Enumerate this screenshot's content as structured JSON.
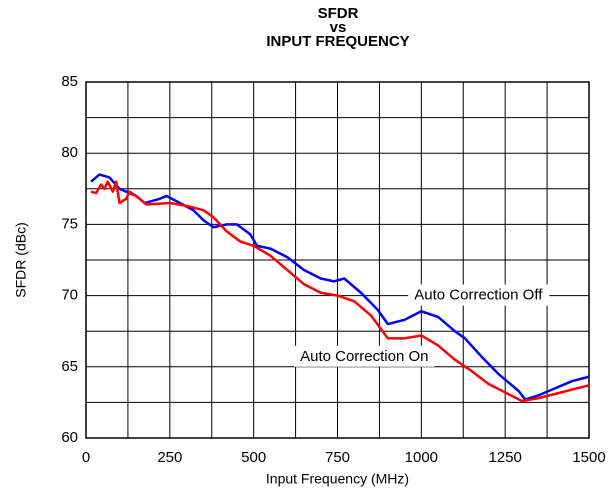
{
  "chart_data": {
    "type": "line",
    "title": [
      "SFDR",
      "vs",
      "INPUT FREQUENCY"
    ],
    "x_label": "Input Frequency (MHz)",
    "y_label": "SFDR (dBc)",
    "xlim": [
      0,
      1500
    ],
    "xticks": [
      0,
      250,
      500,
      750,
      1000,
      1250,
      1500
    ],
    "x_minor_grid": [
      125,
      375,
      625,
      875,
      1125,
      1375
    ],
    "ylim": [
      60,
      85
    ],
    "yticks": [
      60,
      65,
      70,
      75,
      80,
      85
    ],
    "y_minor_grid": [
      62.5,
      67.5,
      72.5,
      77.5,
      82.5
    ],
    "grid": true,
    "series": [
      {
        "color": "#0000ff",
        "x": [
          15,
          40,
          70,
          100,
          150,
          175,
          220,
          240,
          280,
          320,
          350,
          380,
          420,
          450,
          490,
          510,
          550,
          600,
          650,
          700,
          740,
          770,
          820,
          870,
          900,
          950,
          1000,
          1050,
          1100,
          1130,
          1180,
          1230,
          1290,
          1310,
          1350,
          1400,
          1450,
          1500
        ],
        "values": [
          78.0,
          78.5,
          78.3,
          77.5,
          77.0,
          76.5,
          76.8,
          77.0,
          76.5,
          76.0,
          75.3,
          74.8,
          75.0,
          75.0,
          74.3,
          73.5,
          73.3,
          72.7,
          71.8,
          71.2,
          71.0,
          71.2,
          70.2,
          69.0,
          68.0,
          68.3,
          68.9,
          68.5,
          67.5,
          67.0,
          65.7,
          64.5,
          63.3,
          62.7,
          63.0,
          63.5,
          64.0,
          64.3
        ]
      },
      {
        "color": "#ff0000",
        "x": [
          15,
          30,
          45,
          55,
          65,
          80,
          90,
          100,
          120,
          130,
          160,
          180,
          250,
          300,
          350,
          380,
          420,
          460,
          500,
          550,
          600,
          650,
          700,
          750,
          800,
          850,
          900,
          950,
          1000,
          1050,
          1100,
          1150,
          1200,
          1250,
          1300,
          1350,
          1400,
          1450,
          1500
        ],
        "values": [
          77.3,
          77.2,
          77.8,
          77.5,
          78.0,
          77.3,
          78.0,
          76.5,
          76.8,
          77.3,
          76.8,
          76.4,
          76.5,
          76.3,
          76.0,
          75.5,
          74.5,
          73.8,
          73.5,
          72.8,
          71.8,
          70.8,
          70.2,
          70.0,
          69.6,
          68.6,
          67.0,
          67.0,
          67.2,
          66.5,
          65.5,
          64.7,
          63.8,
          63.2,
          62.6,
          62.8,
          63.1,
          63.4,
          63.7
        ]
      }
    ],
    "annotations": [
      {
        "text": "Auto Correction Off",
        "x": 1170,
        "y": 70
      },
      {
        "text": "Auto Correction On",
        "x": 830,
        "y": 65.7
      }
    ]
  }
}
